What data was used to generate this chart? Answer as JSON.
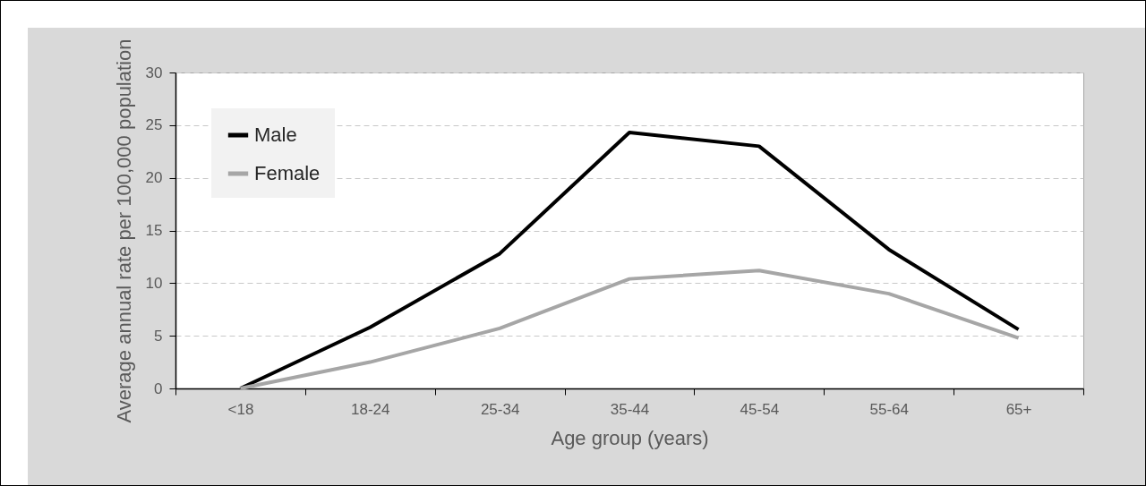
{
  "chart_data": {
    "type": "line",
    "xlabel": "Age group (years)",
    "ylabel": "Average annual rate per 100,000 population",
    "categories": [
      "<18",
      "18-24",
      "25-34",
      "35-44",
      "45-54",
      "55-64",
      "65+"
    ],
    "series": [
      {
        "name": "Male",
        "color": "#000000",
        "values": [
          0,
          5.8,
          12.8,
          24.3,
          23.0,
          13.2,
          5.6
        ]
      },
      {
        "name": "Female",
        "color": "#a6a6a6",
        "values": [
          0,
          2.5,
          5.7,
          10.4,
          11.2,
          9.0,
          4.8
        ]
      }
    ],
    "ylim": [
      0,
      30
    ],
    "yticks": [
      0,
      5,
      10,
      15,
      20,
      25,
      30
    ],
    "grid": "y",
    "legend": "top left",
    "line_style": "solid",
    "marker": "none"
  }
}
